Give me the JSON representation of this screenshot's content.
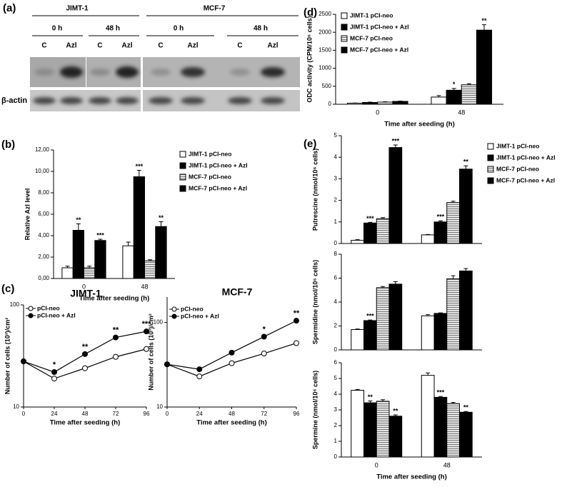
{
  "blot": {
    "panel": "(a)",
    "groups": [
      {
        "name": "JIMT-1",
        "times": [
          {
            "label": "0 h",
            "lanes": [
              "C",
              "Azl"
            ]
          },
          {
            "label": "48 h",
            "lanes": [
              "C",
              "Azl"
            ]
          }
        ]
      },
      {
        "name": "MCF-7",
        "times": [
          {
            "label": "0 h",
            "lanes": [
              "C",
              "Azl"
            ]
          },
          {
            "label": "48 h",
            "lanes": [
              "C",
              "Azl"
            ]
          }
        ]
      }
    ],
    "loading_control": "β-actin"
  },
  "chart_data": [
    {
      "panel": "(b)",
      "type": "bar",
      "categories": [
        "0",
        "48"
      ],
      "ylim": [
        0,
        12
      ],
      "yticks": [
        {
          "value": 0,
          "label": "0,00"
        },
        {
          "value": 2,
          "label": "2,00"
        },
        {
          "value": 4,
          "label": "4,00"
        },
        {
          "value": 6,
          "label": "6,00"
        },
        {
          "value": 8,
          "label": "8,00"
        },
        {
          "value": 10,
          "label": "10,00"
        },
        {
          "value": 12,
          "label": "12,00"
        }
      ],
      "ylabel": "Relative Azl level",
      "xlabel": "Time after seeding (h)",
      "legend": "right",
      "series": [
        {
          "name": "JIMT-1 pCI-neo",
          "color": "#ffffff",
          "values": [
            1.0,
            3.05
          ],
          "errors": [
            0.15,
            0.35
          ],
          "stars": [
            null,
            null
          ]
        },
        {
          "name": "JIMT-1 pCI-neo + Azl",
          "color": "#000000",
          "values": [
            4.5,
            9.5
          ],
          "errors": [
            0.6,
            0.6
          ],
          "stars": [
            "**",
            "***"
          ]
        },
        {
          "name": "MCF-7 pCI-neo",
          "color": "#888888",
          "hatch": true,
          "values": [
            1.0,
            1.65
          ],
          "errors": [
            0.15,
            0.1
          ],
          "stars": [
            null,
            null
          ]
        },
        {
          "name": "MCF-7 pCI-neo + Azl",
          "color": "#000000",
          "values": [
            3.55,
            4.85
          ],
          "errors": [
            0.12,
            0.45
          ],
          "stars": [
            "***",
            "**"
          ]
        }
      ]
    },
    {
      "panel": "(c)",
      "type": "line",
      "title": "JIMT-1",
      "x": [
        0,
        24,
        48,
        72,
        96
      ],
      "xlim": [
        0,
        96
      ],
      "xticks": [
        0,
        24,
        48,
        72,
        96
      ],
      "ylim": [
        10,
        100
      ],
      "yticks": [
        10,
        100
      ],
      "log_y": true,
      "ylabel": "Number of cells (10³)/cm²",
      "xlabel": "Time after seeding (h)",
      "legend": "upper left",
      "series": [
        {
          "name": "pCI-neo",
          "color": "#000000",
          "marker_fill": "#ffffff",
          "values": [
            28,
            19,
            24,
            31,
            37
          ],
          "stars": [
            null,
            null,
            null,
            null,
            null
          ]
        },
        {
          "name": "pCI-neo + Azl",
          "color": "#000000",
          "marker_fill": "#000000",
          "values": [
            28,
            22,
            33,
            48,
            55
          ],
          "stars": [
            null,
            "*",
            "**",
            "**",
            "***"
          ]
        }
      ]
    },
    {
      "type": "line",
      "title": "MCF-7",
      "x": [
        0,
        24,
        48,
        72,
        96
      ],
      "xlim": [
        0,
        96
      ],
      "xticks": [
        0,
        24,
        48,
        72,
        96
      ],
      "ylim": [
        10,
        200
      ],
      "yticks": [
        10,
        100
      ],
      "log_y": true,
      "ylabel": "Number of cells (10³)/cm²",
      "xlabel": "Time after seeding (h)",
      "legend": "upper left",
      "series": [
        {
          "name": "pCI-neo",
          "color": "#000000",
          "marker_fill": "#ffffff",
          "values": [
            32,
            23,
            33,
            43,
            57
          ],
          "stars": [
            null,
            null,
            null,
            null,
            null
          ]
        },
        {
          "name": "pCI-neo + Azl",
          "color": "#000000",
          "marker_fill": "#000000",
          "values": [
            32,
            28,
            44,
            68,
            105
          ],
          "stars": [
            null,
            null,
            null,
            "*",
            "**"
          ]
        }
      ]
    },
    {
      "panel": "(d)",
      "type": "bar",
      "categories": [
        "0",
        "48"
      ],
      "ylim": [
        0,
        2500
      ],
      "yticks": [
        0,
        500,
        1000,
        1500,
        2000,
        2500
      ],
      "ylabel": "ODC  activity (CPM/10⁶ cells)",
      "xlabel": "Time after seeding (h)",
      "legend": "upper left",
      "series": [
        {
          "name": "JIMT-1 pCI-neo",
          "color": "#ffffff",
          "values": [
            30,
            200
          ],
          "errors": [
            5,
            40
          ],
          "stars": [
            null,
            null
          ]
        },
        {
          "name": "JIMT-1 pCI-neo + Azl",
          "color": "#000000",
          "values": [
            50,
            390
          ],
          "errors": [
            10,
            50
          ],
          "stars": [
            null,
            "*"
          ]
        },
        {
          "name": "MCF-7 pCI-neo",
          "color": "#888888",
          "hatch": true,
          "values": [
            60,
            540
          ],
          "errors": [
            10,
            30
          ],
          "stars": [
            null,
            null
          ]
        },
        {
          "name": "MCF-7 pCI-neo + Azl",
          "color": "#000000",
          "values": [
            80,
            2060
          ],
          "errors": [
            10,
            150
          ],
          "stars": [
            null,
            "**"
          ]
        }
      ]
    },
    {
      "panel": "(e)",
      "type": "bar",
      "ylim": [
        0,
        5
      ],
      "yticks": [
        0,
        1,
        2,
        3,
        4,
        5
      ],
      "ylabel": "Putrescine (nmol/10⁶ cells)",
      "legend": "right",
      "series": [
        {
          "name": "JIMT-1 pCI-neo",
          "color": "#ffffff",
          "values": [
            0.15,
            0.4
          ],
          "errors": [
            0.03,
            0.02
          ],
          "stars": [
            null,
            null
          ]
        },
        {
          "name": "JIMT-1 pCI-neo + Azl",
          "color": "#000000",
          "values": [
            0.95,
            1.0
          ],
          "errors": [
            0.03,
            0.05
          ],
          "stars": [
            "***",
            "***"
          ]
        },
        {
          "name": "MCF-7 pCI-neo",
          "color": "#888888",
          "hatch": true,
          "values": [
            1.15,
            1.9
          ],
          "errors": [
            0.05,
            0.06
          ],
          "stars": [
            null,
            null
          ]
        },
        {
          "name": "MCF-7 pCI-neo + Azl",
          "color": "#000000",
          "values": [
            4.45,
            3.45
          ],
          "errors": [
            0.12,
            0.15
          ],
          "stars": [
            "***",
            "**"
          ]
        }
      ]
    },
    {
      "type": "bar",
      "ylim": [
        0,
        8
      ],
      "yticks": [
        0,
        2,
        4,
        6,
        8
      ],
      "ylabel": "Spermidine (nmol/10⁶ cells)",
      "series": [
        {
          "color": "#ffffff",
          "values": [
            1.7,
            2.85
          ],
          "errors": [
            0.05,
            0.1
          ],
          "stars": [
            null,
            null
          ]
        },
        {
          "color": "#000000",
          "values": [
            2.45,
            3.05
          ],
          "errors": [
            0.05,
            0.05
          ],
          "stars": [
            "***",
            null
          ]
        },
        {
          "color": "#888888",
          "hatch": true,
          "values": [
            5.2,
            5.95
          ],
          "errors": [
            0.1,
            0.25
          ],
          "stars": [
            null,
            null
          ]
        },
        {
          "color": "#000000",
          "values": [
            5.5,
            6.6
          ],
          "errors": [
            0.2,
            0.2
          ],
          "stars": [
            null,
            null
          ]
        }
      ]
    },
    {
      "type": "bar",
      "categories": [
        "0",
        "48"
      ],
      "ylim": [
        0,
        6
      ],
      "yticks": [
        0,
        1,
        2,
        3,
        4,
        5,
        6
      ],
      "ylabel": "Spermine (nmol/10⁶ cells)",
      "xlabel": "Time after seeding (h)",
      "series": [
        {
          "color": "#ffffff",
          "values": [
            4.25,
            5.2
          ],
          "errors": [
            0.05,
            0.15
          ],
          "stars": [
            null,
            null
          ]
        },
        {
          "color": "#000000",
          "values": [
            3.45,
            3.8
          ],
          "errors": [
            0.12,
            0.05
          ],
          "stars": [
            "**",
            "***"
          ]
        },
        {
          "color": "#888888",
          "hatch": true,
          "values": [
            3.55,
            3.4
          ],
          "errors": [
            0.1,
            0.08
          ],
          "stars": [
            null,
            null
          ]
        },
        {
          "color": "#000000",
          "values": [
            2.6,
            2.85
          ],
          "errors": [
            0.08,
            0.05
          ],
          "stars": [
            "**",
            "**"
          ]
        }
      ]
    }
  ]
}
